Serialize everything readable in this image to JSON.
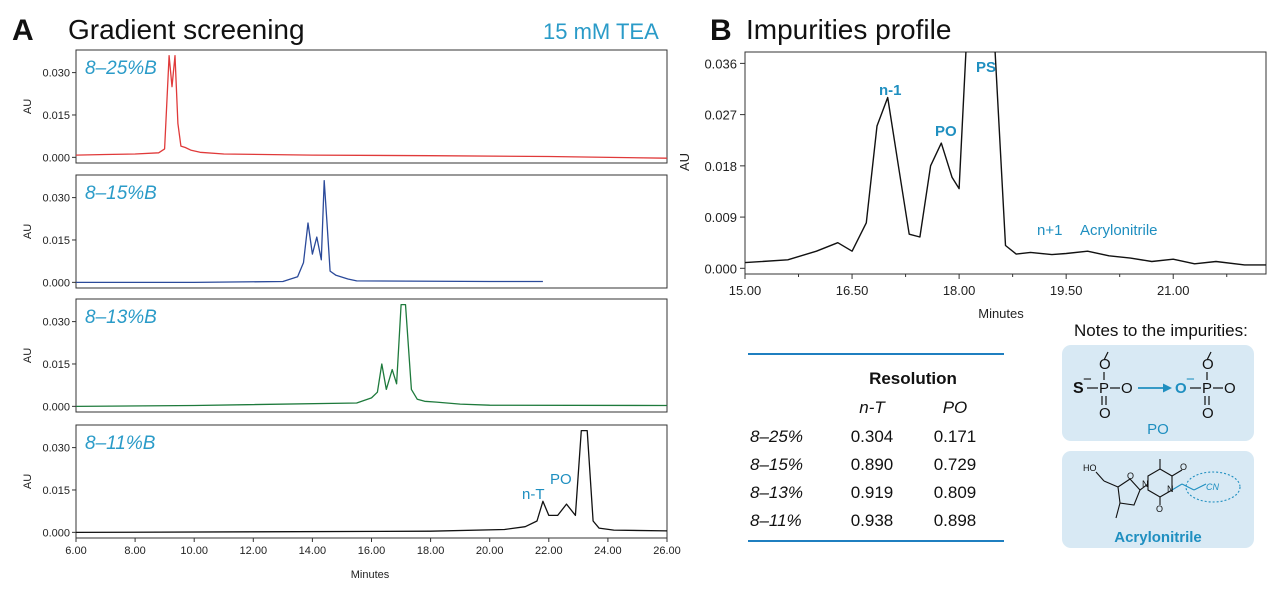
{
  "panelA": {
    "letter": "A",
    "title": "Gradient screening",
    "condition": "15 mM TEA",
    "ylabel": "AU",
    "xlabel": "Minutes",
    "x_ticks": [
      "6.00",
      "8.00",
      "10.00",
      "12.00",
      "14.00",
      "16.00",
      "18.00",
      "20.00",
      "22.00",
      "24.00",
      "26.00"
    ],
    "y_ticks": [
      "0.000",
      "0.015",
      "0.030"
    ],
    "subplots": [
      {
        "label": "8–25%B",
        "color": "#e03a3a"
      },
      {
        "label": "8–15%B",
        "color": "#2b4a9a"
      },
      {
        "label": "8–13%B",
        "color": "#1e7a3c"
      },
      {
        "label": "8–11%B",
        "color": "#111111"
      }
    ],
    "annotations": {
      "nt": "n-T",
      "po": "PO"
    }
  },
  "panelB": {
    "letter": "B",
    "title": "Impurities profile",
    "ylabel": "AU",
    "xlabel": "Minutes",
    "x_ticks": [
      "15.00",
      "16.50",
      "18.00",
      "19.50",
      "21.00"
    ],
    "y_ticks": [
      "0.000",
      "0.009",
      "0.018",
      "0.027",
      "0.036"
    ],
    "peaks": {
      "n1": "n-1",
      "po": "PO",
      "ps": "PS",
      "np1": "n+1",
      "acr": "Acrylonitrile"
    }
  },
  "table": {
    "title": "Resolution",
    "columns": [
      "n-T",
      "PO"
    ],
    "rows": [
      {
        "gradient": "8–25%",
        "nT": "0.304",
        "PO": "0.171"
      },
      {
        "gradient": "8–15%",
        "nT": "0.890",
        "PO": "0.729"
      },
      {
        "gradient": "8–13%",
        "nT": "0.919",
        "PO": "0.809"
      },
      {
        "gradient": "8–11%",
        "nT": "0.938",
        "PO": "0.898"
      }
    ]
  },
  "notes": {
    "title": "Notes to the impurities:",
    "box1_caption": "PO",
    "box2_caption": "Acrylonitrile",
    "chem": {
      "S": "S",
      "P": "P",
      "O": "O",
      "minus": "−",
      "HO": "HO",
      "N": "N",
      "CN": "CN"
    }
  },
  "chart_data": [
    {
      "type": "line",
      "title": "Gradient screening",
      "xlabel": "Minutes",
      "ylabel": "AU",
      "xlim": [
        6,
        26
      ],
      "ylim": [
        -0.002,
        0.038
      ],
      "series": [
        {
          "name": "8–25%B",
          "x": [
            6.0,
            7.0,
            8.0,
            8.8,
            9.0,
            9.15,
            9.25,
            9.35,
            9.45,
            9.55,
            9.7,
            9.9,
            10.2,
            11,
            14,
            18,
            22,
            26
          ],
          "y": [
            0.0008,
            0.001,
            0.0012,
            0.0016,
            0.003,
            0.036,
            0.025,
            0.036,
            0.012,
            0.004,
            0.0035,
            0.0025,
            0.0018,
            0.0012,
            0.0008,
            0.0006,
            0.0003,
            -0.0003
          ]
        },
        {
          "name": "8–15%B",
          "x": [
            6.0,
            10,
            13.0,
            13.5,
            13.7,
            13.85,
            14.0,
            14.15,
            14.3,
            14.4,
            14.5,
            14.6,
            14.8,
            15.2,
            15.5,
            20,
            21.8
          ],
          "y": [
            0.0,
            0.0,
            0.0003,
            0.002,
            0.007,
            0.021,
            0.01,
            0.016,
            0.008,
            0.036,
            0.02,
            0.004,
            0.0025,
            0.0012,
            0.0005,
            0.0003,
            0.0003
          ]
        },
        {
          "name": "8–13%B",
          "x": [
            6.0,
            10,
            15.5,
            16.0,
            16.2,
            16.35,
            16.5,
            16.7,
            16.85,
            17.0,
            17.15,
            17.35,
            17.55,
            17.8,
            18.2,
            19.0,
            20,
            26
          ],
          "y": [
            0.0,
            0.0003,
            0.0012,
            0.003,
            0.005,
            0.015,
            0.006,
            0.013,
            0.008,
            0.036,
            0.036,
            0.006,
            0.0025,
            0.0018,
            0.0015,
            0.0008,
            0.0004,
            0.0003
          ]
        },
        {
          "name": "8–11%B",
          "x": [
            6.0,
            12,
            18,
            20.5,
            21.2,
            21.6,
            21.8,
            22.0,
            22.3,
            22.6,
            22.9,
            23.1,
            23.3,
            23.5,
            23.7,
            24.2,
            26
          ],
          "y": [
            0.0,
            0.0002,
            0.0004,
            0.001,
            0.002,
            0.004,
            0.011,
            0.006,
            0.006,
            0.01,
            0.006,
            0.036,
            0.036,
            0.004,
            0.0015,
            0.0008,
            0.0005
          ]
        }
      ]
    },
    {
      "type": "line",
      "title": "Impurities profile",
      "xlabel": "Minutes",
      "ylabel": "AU",
      "xlim": [
        15,
        22.3
      ],
      "ylim": [
        -0.001,
        0.038
      ],
      "series": [
        {
          "name": "impurities",
          "x": [
            15.0,
            15.6,
            16.0,
            16.3,
            16.5,
            16.7,
            16.85,
            17.0,
            17.15,
            17.3,
            17.45,
            17.6,
            17.75,
            17.9,
            18.0,
            18.1,
            18.2,
            18.5,
            18.65,
            18.8,
            19.0,
            19.3,
            19.5,
            19.8,
            20.1,
            20.4,
            20.7,
            21.0,
            21.3,
            21.6,
            22.0,
            22.3
          ],
          "y": [
            0.001,
            0.0015,
            0.003,
            0.0045,
            0.003,
            0.008,
            0.025,
            0.03,
            0.018,
            0.006,
            0.0055,
            0.018,
            0.022,
            0.016,
            0.014,
            0.039,
            0.039,
            0.039,
            0.004,
            0.0025,
            0.0028,
            0.0024,
            0.0026,
            0.003,
            0.0022,
            0.0018,
            0.0012,
            0.0016,
            0.0008,
            0.0012,
            0.0006,
            0.0006
          ]
        }
      ]
    }
  ]
}
